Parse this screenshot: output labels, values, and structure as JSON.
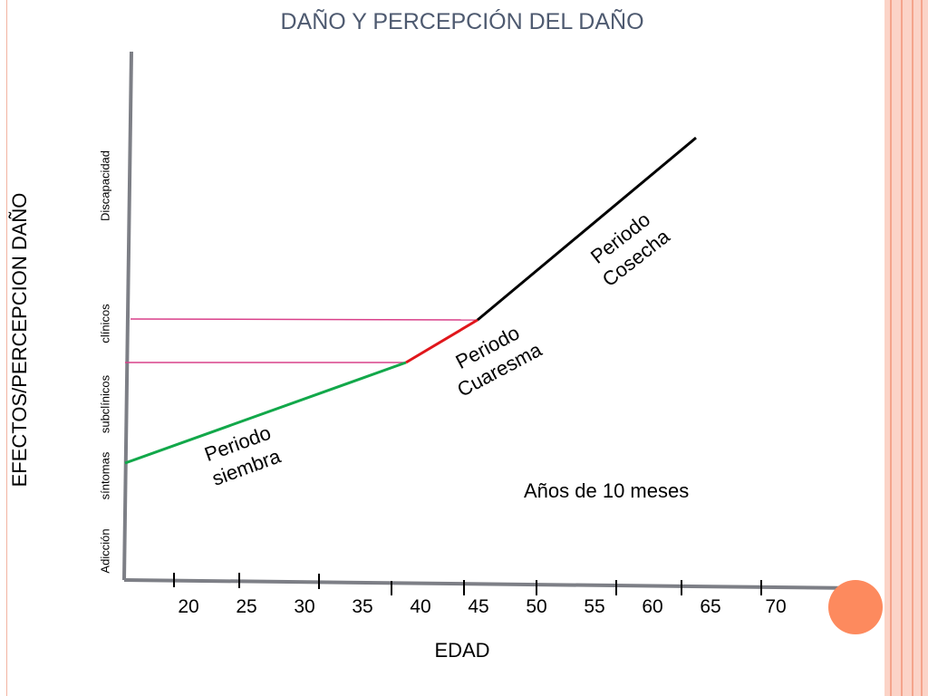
{
  "title": "DAÑO Y PERCEPCIÓN DEL DAÑO",
  "y_axis_label": "EFECTOS/PERCEPCION DAÑO",
  "x_axis_label": "EDAD",
  "y_categories": [
    "Adicción",
    "síntomas",
    "subclínicos",
    "clínicos",
    "Discapacidad"
  ],
  "x_ticks": [
    "20",
    "25",
    "30",
    "35",
    "40",
    "45",
    "50",
    "55",
    "60",
    "65",
    "70"
  ],
  "note": "Años de 10 meses",
  "segments": {
    "siembra": {
      "line1": "Periodo",
      "line2": "siembra",
      "color": "#12a84a"
    },
    "cuaresma": {
      "line1": "Periodo",
      "line2": "Cuaresma",
      "color": "#e0161b"
    },
    "cosecha": {
      "line1": "Periodo",
      "line2": "Cosecha",
      "color": "#000000"
    }
  },
  "reference_line_color": "#d9408a",
  "theme": {
    "accent": "#fd8a5e",
    "border": "#fbd3c7",
    "axis": "#7d7f86"
  }
}
